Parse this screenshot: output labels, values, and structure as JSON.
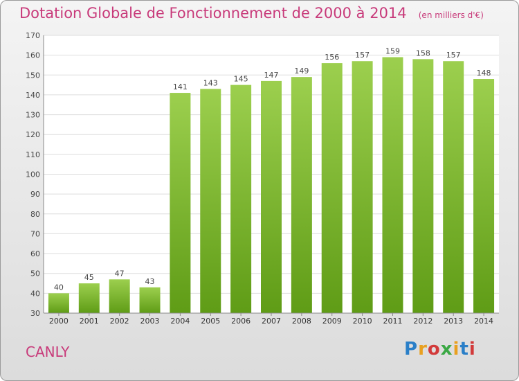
{
  "header": {
    "title": "Dotation Globale de Fonctionnement de 2000 à 2014",
    "subtitle": "(en milliers d'€)"
  },
  "commune": "CANLY",
  "logo": {
    "text": "Proxiti",
    "colors": [
      "#2a7fc8",
      "#e8a020",
      "#d23a3a",
      "#3aa844",
      "#e8a020",
      "#2a7fc8",
      "#d23a3a"
    ]
  },
  "chart_data": {
    "type": "bar",
    "title": "Dotation Globale de Fonctionnement de 2000 à 2014",
    "subtitle": "(en milliers d'€)",
    "categories": [
      "2000",
      "2001",
      "2002",
      "2003",
      "2004",
      "2005",
      "2006",
      "2007",
      "2008",
      "2009",
      "2010",
      "2011",
      "2012",
      "2013",
      "2014"
    ],
    "values": [
      40,
      45,
      47,
      43,
      141,
      143,
      145,
      147,
      149,
      156,
      157,
      159,
      158,
      157,
      148
    ],
    "ylim": [
      30,
      170
    ],
    "yticks": [
      30,
      40,
      50,
      60,
      70,
      80,
      90,
      100,
      110,
      120,
      130,
      140,
      150,
      160,
      170
    ],
    "grid": true,
    "bar_color": "#8cc63f",
    "bar_color_dark": "#5a9a14",
    "grid_color": "#dddddd"
  }
}
